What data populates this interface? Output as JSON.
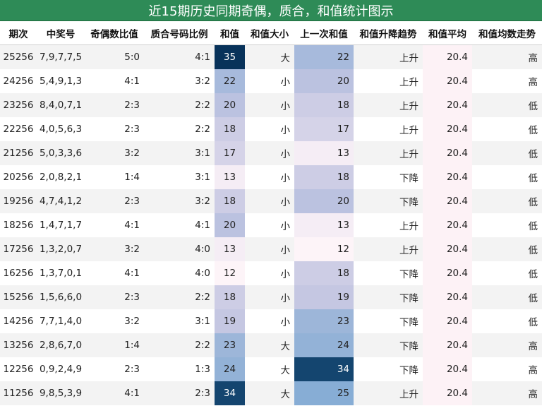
{
  "chart_data": {
    "type": "table",
    "title": "近15期历史同期奇偶，质合，和值统计图示",
    "columns": [
      "期次",
      "中奖号",
      "奇偶数比值",
      "质合号码比例",
      "和值",
      "和值大小",
      "上一次和值",
      "和值升降趋势",
      "和值平均",
      "和值均数走势"
    ],
    "rows": [
      [
        "25256",
        "7,9,7,7,5",
        "5:0",
        "4:1",
        35,
        "大",
        22,
        "上升",
        "20.4",
        "高"
      ],
      [
        "24256",
        "5,4,9,1,3",
        "4:1",
        "3:2",
        22,
        "小",
        20,
        "上升",
        "20.4",
        "高"
      ],
      [
        "23256",
        "8,4,0,7,1",
        "2:3",
        "2:2",
        20,
        "小",
        18,
        "上升",
        "20.4",
        "低"
      ],
      [
        "22256",
        "4,0,5,6,3",
        "2:3",
        "2:2",
        18,
        "小",
        17,
        "上升",
        "20.4",
        "低"
      ],
      [
        "21256",
        "5,0,3,3,6",
        "3:2",
        "3:1",
        17,
        "小",
        13,
        "上升",
        "20.4",
        "低"
      ],
      [
        "20256",
        "2,0,8,2,1",
        "1:4",
        "3:1",
        13,
        "小",
        18,
        "下降",
        "20.4",
        "低"
      ],
      [
        "19256",
        "4,7,4,1,2",
        "2:3",
        "3:2",
        18,
        "小",
        20,
        "下降",
        "20.4",
        "低"
      ],
      [
        "18256",
        "1,4,7,1,7",
        "4:1",
        "4:1",
        20,
        "小",
        13,
        "上升",
        "20.4",
        "低"
      ],
      [
        "17256",
        "1,3,2,0,7",
        "3:2",
        "4:0",
        13,
        "小",
        12,
        "上升",
        "20.4",
        "低"
      ],
      [
        "16256",
        "1,3,7,0,1",
        "4:1",
        "4:0",
        12,
        "小",
        18,
        "下降",
        "20.4",
        "低"
      ],
      [
        "15256",
        "1,5,6,6,0",
        "2:3",
        "2:2",
        18,
        "小",
        19,
        "下降",
        "20.4",
        "低"
      ],
      [
        "14256",
        "7,7,1,4,0",
        "3:2",
        "3:1",
        19,
        "小",
        23,
        "下降",
        "20.4",
        "低"
      ],
      [
        "13256",
        "2,8,6,7,0",
        "1:4",
        "2:2",
        23,
        "大",
        24,
        "下降",
        "20.4",
        "高"
      ],
      [
        "12256",
        "0,9,2,4,9",
        "2:3",
        "1:3",
        24,
        "大",
        34,
        "下降",
        "20.4",
        "高"
      ],
      [
        "11256",
        "9,8,5,3,9",
        "4:1",
        "2:3",
        34,
        "大",
        25,
        "上升",
        "20.4",
        "高"
      ]
    ],
    "heat_columns": [
      "和值",
      "上一次和值"
    ],
    "heat_range": [
      12,
      35
    ],
    "average_cell_color": "#fdf2f6"
  }
}
